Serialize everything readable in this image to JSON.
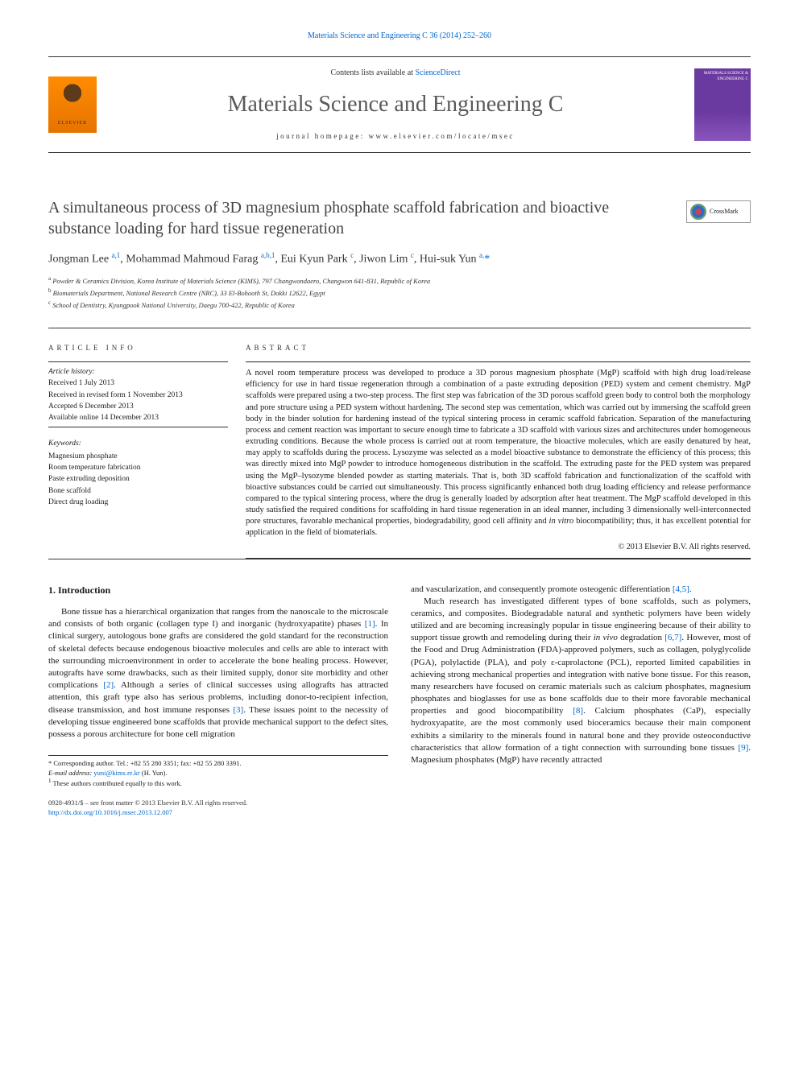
{
  "top_link": "Materials Science and Engineering C 36 (2014) 252–260",
  "header": {
    "elsevier_label": "ELSEVIER",
    "contents_prefix": "Contents lists available at ",
    "contents_link": "ScienceDirect",
    "journal_title": "Materials Science and Engineering C",
    "homepage_label": "journal homepage: www.elsevier.com/locate/msec",
    "cover_title": "MATERIALS SCIENCE & ENGINEERING C"
  },
  "article": {
    "title": "A simultaneous process of 3D magnesium phosphate scaffold fabrication and bioactive substance loading for hard tissue regeneration",
    "crossmark_label": "CrossMark",
    "authors_html": "Jongman Lee <sup>a,1</sup>, Mohammad Mahmoud Farag <sup>a,b,1</sup>, Eui Kyun Park <sup>c</sup>, Jiwon Lim <sup>c</sup>, Hui-suk Yun <sup>a,</sup><span class='star'>*</span>",
    "affiliations": [
      "a Powder & Ceramics Division, Korea Institute of Materials Science (KIMS), 797 Changwondaero, Changwon 641-831, Republic of Korea",
      "b Biomaterials Department, National Research Centre (NRC), 33 El-Bohooth St, Dokki 12622, Egypt",
      "c School of Dentistry, Kyungpook National University, Daegu 700-422, Republic of Korea"
    ]
  },
  "info": {
    "header": "ARTICLE INFO",
    "history_label": "Article history:",
    "history": [
      "Received 1 July 2013",
      "Received in revised form 1 November 2013",
      "Accepted 6 December 2013",
      "Available online 14 December 2013"
    ],
    "keywords_label": "Keywords:",
    "keywords": [
      "Magnesium phosphate",
      "Room temperature fabrication",
      "Paste extruding deposition",
      "Bone scaffold",
      "Direct drug loading"
    ]
  },
  "abstract": {
    "header": "ABSTRACT",
    "text": "A novel room temperature process was developed to produce a 3D porous magnesium phosphate (MgP) scaffold with high drug load/release efficiency for use in hard tissue regeneration through a combination of a paste extruding deposition (PED) system and cement chemistry. MgP scaffolds were prepared using a two-step process. The first step was fabrication of the 3D porous scaffold green body to control both the morphology and pore structure using a PED system without hardening. The second step was cementation, which was carried out by immersing the scaffold green body in the binder solution for hardening instead of the typical sintering process in ceramic scaffold fabrication. Separation of the manufacturing process and cement reaction was important to secure enough time to fabricate a 3D scaffold with various sizes and architectures under homogeneous extruding conditions. Because the whole process is carried out at room temperature, the bioactive molecules, which are easily denatured by heat, may apply to scaffolds during the process. Lysozyme was selected as a model bioactive substance to demonstrate the efficiency of this process; this was directly mixed into MgP powder to introduce homogeneous distribution in the scaffold. The extruding paste for the PED system was prepared using the MgP–lysozyme blended powder as starting materials. That is, both 3D scaffold fabrication and functionalization of the scaffold with bioactive substances could be carried out simultaneously. This process significantly enhanced both drug loading efficiency and release performance compared to the typical sintering process, where the drug is generally loaded by adsorption after heat treatment. The MgP scaffold developed in this study satisfied the required conditions for scaffolding in hard tissue regeneration in an ideal manner, including 3 dimensionally well-interconnected pore structures, favorable mechanical properties, biodegradability, good cell affinity and in vitro biocompatibility; thus, it has excellent potential for application in the field of biomaterials.",
    "copyright": "© 2013 Elsevier B.V. All rights reserved."
  },
  "intro": {
    "heading": "1. Introduction",
    "col1_p1": "Bone tissue has a hierarchical organization that ranges from the nanoscale to the microscale and consists of both organic (collagen type I) and inorganic (hydroxyapatite) phases [1]. In clinical surgery, autologous bone grafts are considered the gold standard for the reconstruction of skeletal defects because endogenous bioactive molecules and cells are able to interact with the surrounding microenvironment in order to accelerate the bone healing process. However, autografts have some drawbacks, such as their limited supply, donor site morbidity and other complications [2]. Although a series of clinical successes using allografts has attracted attention, this graft type also has serious problems, including donor-to-recipient infection, disease transmission, and host immune responses [3]. These issues point to the necessity of developing tissue engineered bone scaffolds that provide mechanical support to the defect sites, possess a porous architecture for bone cell migration",
    "col2_p1": "and vascularization, and consequently promote osteogenic differentiation [4,5].",
    "col2_p2": "Much research has investigated different types of bone scaffolds, such as polymers, ceramics, and composites. Biodegradable natural and synthetic polymers have been widely utilized and are becoming increasingly popular in tissue engineering because of their ability to support tissue growth and remodeling during their in vivo degradation [6,7]. However, most of the Food and Drug Administration (FDA)-approved polymers, such as collagen, polyglycolide (PGA), polylactide (PLA), and poly ε-caprolactone (PCL), reported limited capabilities in achieving strong mechanical properties and integration with native bone tissue. For this reason, many researchers have focused on ceramic materials such as calcium phosphates, magnesium phosphates and bioglasses for use as bone scaffolds due to their more favorable mechanical properties and good biocompatibility [8]. Calcium phosphates (CaP), especially hydroxyapatite, are the most commonly used bioceramics because their main component exhibits a similarity to the minerals found in natural bone and they provide osteoconductive characteristics that allow formation of a tight connection with surrounding bone tissues [9]. Magnesium phosphates (MgP) have recently attracted"
  },
  "footnotes": {
    "corr": "* Corresponding author. Tel.: +82 55 280 3351; fax: +82 55 280 3391.",
    "email_label": "E-mail address: ",
    "email": "yuni@kims.re.kr",
    "email_tail": " (H. Yun).",
    "equal": "1 These authors contributed equally to this work."
  },
  "footer": {
    "issn": "0928-4931/$ – see front matter © 2013 Elsevier B.V. All rights reserved.",
    "doi": "http://dx.doi.org/10.1016/j.msec.2013.12.007"
  },
  "colors": {
    "link": "#0066cc",
    "text": "#1a1a1a",
    "title_gray": "#5a5a5a",
    "elsevier_orange": "#ff8c00",
    "cover_purple": "#6b3aa0"
  }
}
